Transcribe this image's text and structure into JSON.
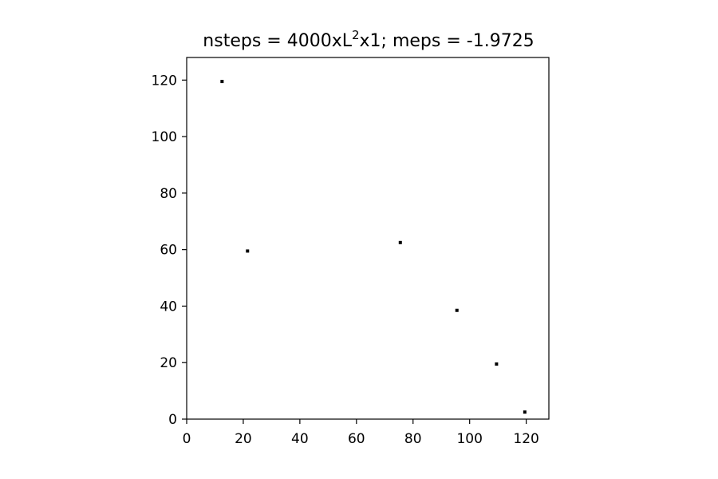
{
  "chart_data": {
    "type": "scatter",
    "title": {
      "prefix": "nsteps = 4000xL",
      "superscript": "2",
      "suffix": "x1; meps = -1.9725"
    },
    "xlabel": "",
    "ylabel": "",
    "xlim": [
      0,
      128
    ],
    "ylim": [
      0,
      128
    ],
    "xticks": [
      0,
      20,
      40,
      60,
      80,
      100,
      120
    ],
    "yticks": [
      0,
      20,
      40,
      60,
      80,
      100,
      120
    ],
    "grid": false,
    "legend": null,
    "point_color": "#000000",
    "points": [
      {
        "x": 12.5,
        "y": 119.5
      },
      {
        "x": 21.5,
        "y": 59.5
      },
      {
        "x": 75.5,
        "y": 62.5
      },
      {
        "x": 95.5,
        "y": 38.5
      },
      {
        "x": 109.5,
        "y": 19.5
      },
      {
        "x": 119.5,
        "y": 2.5
      }
    ]
  }
}
